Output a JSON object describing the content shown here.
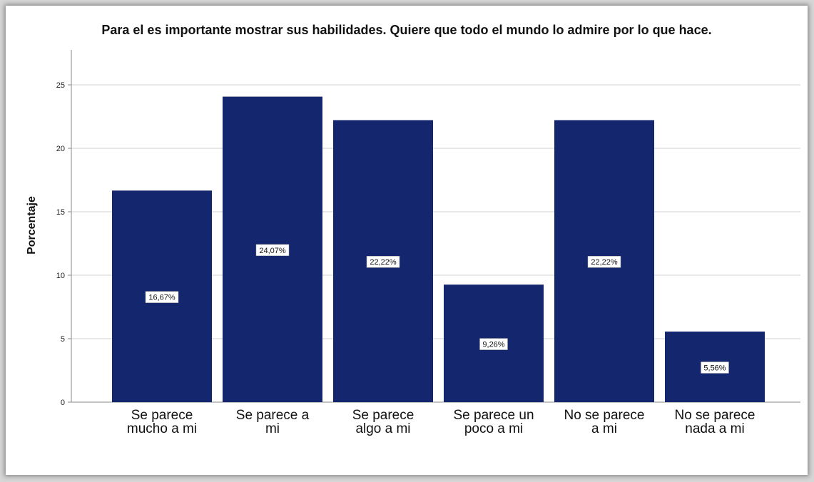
{
  "colors": {
    "bar": "#14266e",
    "grid": "#d0d0d0",
    "axis": "#888888",
    "label_box": "#ffffff"
  },
  "chart_data": {
    "type": "bar",
    "title": "Para el es importante mostrar sus habilidades. Quiere que todo el mundo lo admire por lo que hace.",
    "xlabel": "",
    "ylabel": "Porcentaje",
    "ylim": [
      0,
      25
    ],
    "yticks": [
      0,
      5,
      10,
      15,
      20,
      25
    ],
    "grid": true,
    "categories": [
      "Se parece mucho a mi",
      "Se parece a mi",
      "Se parece algo a mi",
      "Se parece un poco a mi",
      "No se parece a mi",
      "No se parece nada a mi"
    ],
    "category_lines": [
      [
        "Se parece",
        "mucho a mi"
      ],
      [
        "Se parece a",
        "mi"
      ],
      [
        "Se parece",
        "algo a mi"
      ],
      [
        "Se parece un",
        "poco a mi"
      ],
      [
        "No se parece",
        "a mi"
      ],
      [
        "No se parece",
        "nada a mi"
      ]
    ],
    "values": [
      16.67,
      24.07,
      22.22,
      9.26,
      22.22,
      5.56
    ],
    "data_labels": [
      "16,67%",
      "24,07%",
      "22,22%",
      "9,26%",
      "22,22%",
      "5,56%"
    ]
  }
}
